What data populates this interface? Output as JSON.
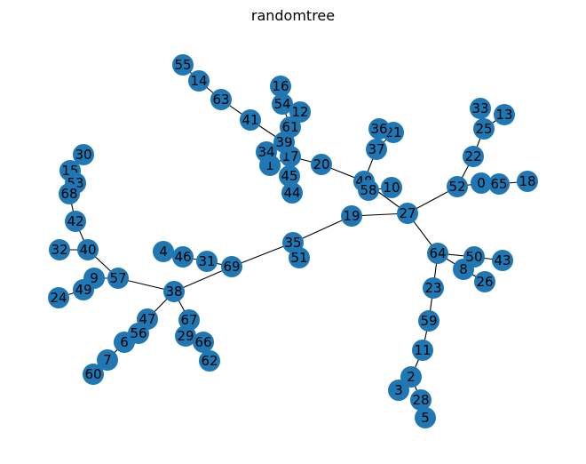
{
  "title": "randomtree",
  "colors": {
    "node": "#1f77b4",
    "edge": "#000000",
    "label": "#000000"
  },
  "nodes": [
    "0",
    "1",
    "2",
    "3",
    "4",
    "5",
    "6",
    "7",
    "8",
    "9",
    "10",
    "11",
    "12",
    "13",
    "14",
    "15",
    "16",
    "17",
    "18",
    "19",
    "20",
    "21",
    "22",
    "23",
    "24",
    "25",
    "26",
    "27",
    "28",
    "29",
    "30",
    "31",
    "32",
    "33",
    "34",
    "35",
    "36",
    "37",
    "38",
    "39",
    "40",
    "41",
    "42",
    "43",
    "44",
    "45",
    "46",
    "47",
    "48",
    "49",
    "50",
    "51",
    "52",
    "53",
    "54",
    "55",
    "56",
    "57",
    "58",
    "59",
    "60",
    "61",
    "62",
    "63",
    "64",
    "65",
    "66",
    "67",
    "68",
    "69"
  ],
  "edges": [
    [
      "55",
      "14"
    ],
    [
      "14",
      "63"
    ],
    [
      "63",
      "41"
    ],
    [
      "41",
      "39"
    ],
    [
      "16",
      "54"
    ],
    [
      "54",
      "61"
    ],
    [
      "61",
      "12"
    ],
    [
      "61",
      "39"
    ],
    [
      "39",
      "17"
    ],
    [
      "39",
      "34"
    ],
    [
      "17",
      "1"
    ],
    [
      "17",
      "45"
    ],
    [
      "45",
      "44"
    ],
    [
      "17",
      "20"
    ],
    [
      "20",
      "48"
    ],
    [
      "36",
      "37"
    ],
    [
      "37",
      "48"
    ],
    [
      "21",
      "37"
    ],
    [
      "48",
      "58"
    ],
    [
      "58",
      "10"
    ],
    [
      "48",
      "27"
    ],
    [
      "19",
      "27"
    ],
    [
      "35",
      "19"
    ],
    [
      "35",
      "51"
    ],
    [
      "35",
      "69"
    ],
    [
      "69",
      "31"
    ],
    [
      "31",
      "46"
    ],
    [
      "46",
      "4"
    ],
    [
      "69",
      "38"
    ],
    [
      "38",
      "57"
    ],
    [
      "57",
      "40"
    ],
    [
      "57",
      "9"
    ],
    [
      "9",
      "49"
    ],
    [
      "49",
      "24"
    ],
    [
      "40",
      "32"
    ],
    [
      "40",
      "42"
    ],
    [
      "42",
      "68"
    ],
    [
      "68",
      "53"
    ],
    [
      "53",
      "15"
    ],
    [
      "15",
      "30"
    ],
    [
      "38",
      "47"
    ],
    [
      "47",
      "56"
    ],
    [
      "56",
      "6"
    ],
    [
      "6",
      "7"
    ],
    [
      "7",
      "60"
    ],
    [
      "38",
      "67"
    ],
    [
      "67",
      "29"
    ],
    [
      "29",
      "66"
    ],
    [
      "66",
      "62"
    ],
    [
      "27",
      "52"
    ],
    [
      "52",
      "0"
    ],
    [
      "0",
      "65"
    ],
    [
      "65",
      "18"
    ],
    [
      "52",
      "22"
    ],
    [
      "22",
      "25"
    ],
    [
      "25",
      "33"
    ],
    [
      "25",
      "13"
    ],
    [
      "27",
      "64"
    ],
    [
      "64",
      "50"
    ],
    [
      "50",
      "43"
    ],
    [
      "64",
      "8"
    ],
    [
      "8",
      "26"
    ],
    [
      "64",
      "23"
    ],
    [
      "23",
      "59"
    ],
    [
      "59",
      "11"
    ],
    [
      "11",
      "2"
    ],
    [
      "2",
      "3"
    ],
    [
      "2",
      "28"
    ],
    [
      "28",
      "5"
    ]
  ]
}
